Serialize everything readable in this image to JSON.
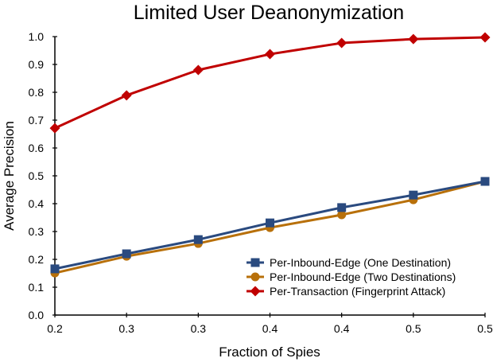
{
  "chart_data": {
    "type": "line",
    "title": "Limited User Deanonymization",
    "xlabel": "Fraction of Spies",
    "ylabel": "Average Precision",
    "categories": [
      "0.2",
      "0.3",
      "0.3",
      "0.4",
      "0.4",
      "0.5",
      "0.5"
    ],
    "ylim": [
      0,
      1.0
    ],
    "yticks": [
      "0.0",
      "0.1",
      "0.2",
      "0.3",
      "0.4",
      "0.5",
      "0.6",
      "0.7",
      "0.8",
      "0.9",
      "1.0"
    ],
    "grid": false,
    "legend_position": "bottom-right",
    "series": [
      {
        "name": "Per-Inbound-Edge (One Destination)",
        "color": "#2a4a7f",
        "marker": "square",
        "values": [
          0.166,
          0.22,
          0.271,
          0.331,
          0.386,
          0.431,
          0.48
        ]
      },
      {
        "name": "Per-Inbound-Edge (Two Destinations)",
        "color": "#b8700a",
        "marker": "circle",
        "values": [
          0.151,
          0.211,
          0.257,
          0.314,
          0.36,
          0.414,
          0.48
        ]
      },
      {
        "name": "Per-Transaction (Fingerprint Attack)",
        "color": "#c00000",
        "marker": "diamond",
        "values": [
          0.671,
          0.789,
          0.88,
          0.937,
          0.977,
          0.991,
          0.997
        ]
      }
    ]
  }
}
